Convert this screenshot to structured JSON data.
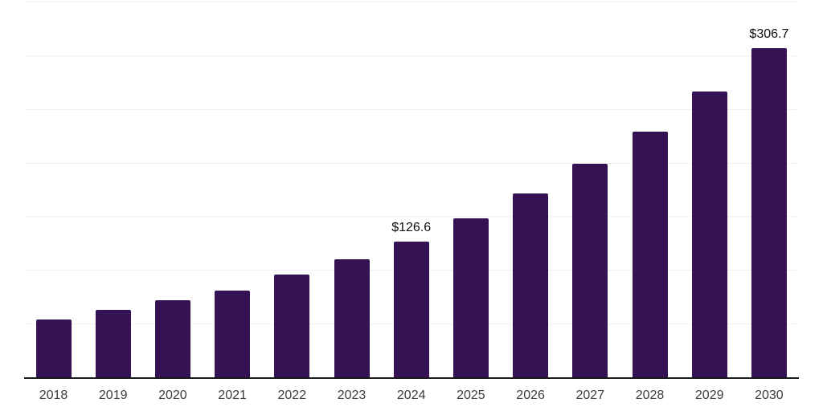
{
  "chart_data": {
    "type": "bar",
    "title": "",
    "xlabel": "",
    "ylabel": "",
    "categories": [
      "2018",
      "2019",
      "2020",
      "2021",
      "2022",
      "2023",
      "2024",
      "2025",
      "2026",
      "2027",
      "2028",
      "2029",
      "2030"
    ],
    "values": [
      53.5,
      63.0,
      72.0,
      81.0,
      96.0,
      110.0,
      126.6,
      148.0,
      171.0,
      199.0,
      229.0,
      266.0,
      306.7
    ],
    "data_labels": [
      "",
      "",
      "",
      "",
      "",
      "",
      "$126.6",
      "",
      "",
      "",
      "",
      "",
      "$306.7"
    ],
    "ylim": [
      0,
      350
    ],
    "grid_step": 50,
    "grid": true,
    "legend": false,
    "y_axis_labels_visible": false,
    "colors": {
      "bar": "#341253",
      "grid": "#f1f1f1",
      "axis": "#1b1b1b",
      "data_label": "#0e0e0e",
      "tick_label": "#3c3c3c",
      "background": "#ffffff"
    }
  }
}
